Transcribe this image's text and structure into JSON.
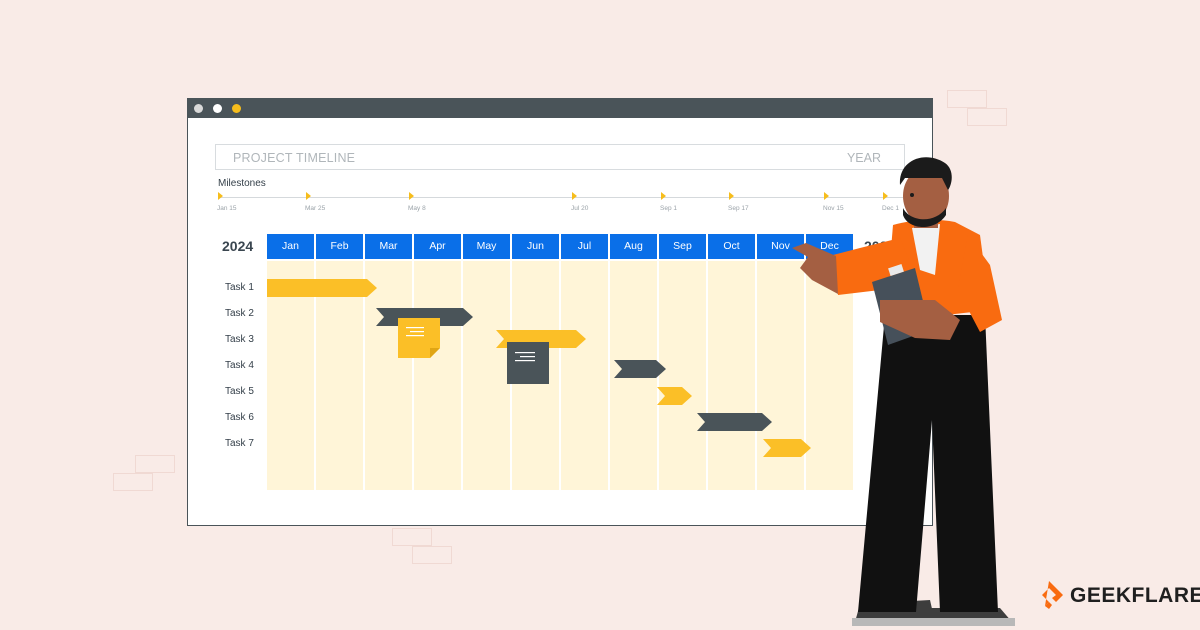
{
  "window": {
    "title_left": "PROJECT TIMELINE",
    "title_right": "YEAR",
    "dots": [
      "#d9d9d9",
      "#ffffff",
      "#f6bd1c"
    ]
  },
  "milestones": {
    "label": "Milestones",
    "dates": [
      "Jan 15",
      "Mar 25",
      "May 8",
      "Jul 20",
      "Sep 1",
      "Sep 17",
      "Nov 15",
      "Dec 1"
    ]
  },
  "timeline": {
    "year_left": "2024",
    "year_right": "2022",
    "months": [
      "Jan",
      "Feb",
      "Mar",
      "Apr",
      "May",
      "Jun",
      "Jul",
      "Aug",
      "Sep",
      "Oct",
      "Nov",
      "Dec"
    ],
    "tasks": [
      "Task 1",
      "Task 2",
      "Task 3",
      "Task 4",
      "Task 5",
      "Task 6",
      "Task 7"
    ]
  },
  "colors": {
    "accent_blue": "#0a6fe8",
    "bar_yellow": "#fbbf27",
    "bar_dark": "#4a5459",
    "column_fill": "#fff5d8",
    "shirt_orange": "#f96b10"
  },
  "brand": {
    "name": "GEEKFLARE",
    "icon": "geekflare-logo-icon"
  }
}
